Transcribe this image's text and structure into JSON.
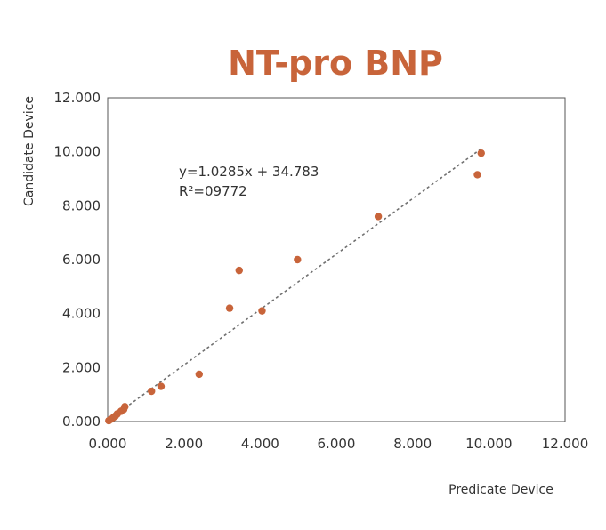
{
  "colors": {
    "accent": "#c8643a",
    "axis": "#555555",
    "trendline": "#707070"
  },
  "chart_data": {
    "type": "scatter",
    "title": "NT-pro BNP",
    "xlabel": "Predicate Device",
    "ylabel": "Candidate Device",
    "xlim": [
      0,
      12000
    ],
    "ylim": [
      0,
      12000
    ],
    "x_ticks": [
      0,
      2000,
      4000,
      6000,
      8000,
      10000,
      12000
    ],
    "y_ticks": [
      0,
      2000,
      4000,
      6000,
      8000,
      10000,
      12000
    ],
    "x_tick_labels": [
      "0.000",
      "2.000",
      "4.000",
      "6.000",
      "8.000",
      "10.000",
      "12.000"
    ],
    "y_tick_labels": [
      "0.000",
      "2.000",
      "4.000",
      "6.000",
      "8.000",
      "10.000",
      "12.000"
    ],
    "grid": false,
    "series": [
      {
        "points": [
          [
            30,
            30
          ],
          [
            80,
            80
          ],
          [
            150,
            150
          ],
          [
            200,
            200
          ],
          [
            250,
            280
          ],
          [
            350,
            380
          ],
          [
            420,
            450
          ],
          [
            450,
            550
          ],
          [
            1150,
            1120
          ],
          [
            1400,
            1300
          ],
          [
            2400,
            1750
          ],
          [
            3200,
            4200
          ],
          [
            3450,
            5600
          ],
          [
            4050,
            4100
          ],
          [
            4980,
            6000
          ],
          [
            7100,
            7600
          ],
          [
            9700,
            9150
          ],
          [
            9800,
            9950
          ]
        ]
      }
    ],
    "trendline": {
      "slope": 1.0285,
      "intercept": 34.783,
      "x_range": [
        0,
        9800
      ],
      "style": "dotted"
    },
    "annotations": {
      "equation": "y=1.0285x + 34.783",
      "r_squared": "R²=09772"
    }
  }
}
